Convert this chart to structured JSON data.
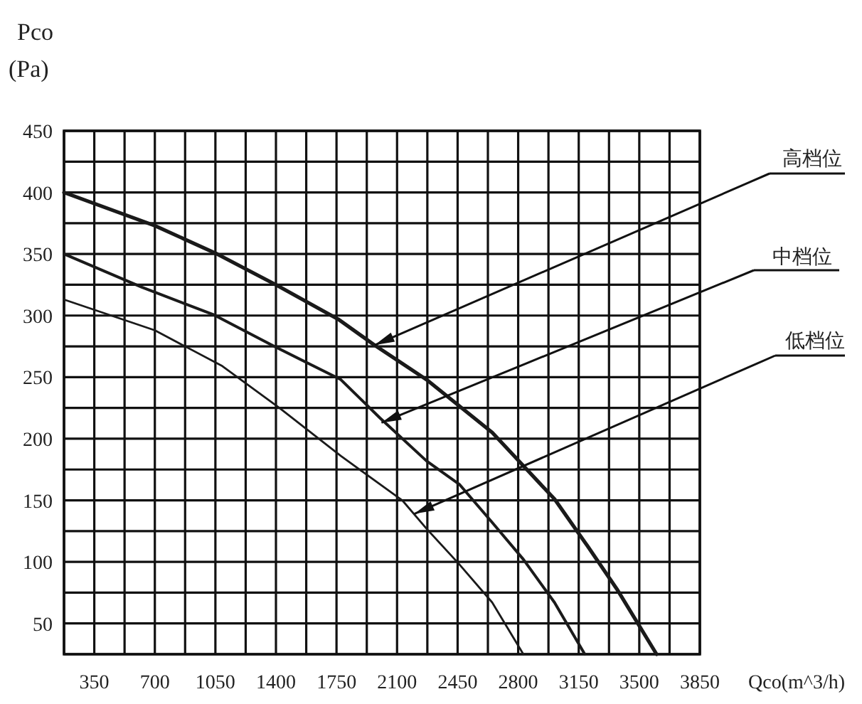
{
  "chart_data": {
    "type": "line",
    "xlabel": "Qco(m^3/h)",
    "ylabel": "Pco (Pa)",
    "xlim": [
      175,
      3850
    ],
    "ylim": [
      25,
      450
    ],
    "xticks": [
      {
        "value": 175,
        "label": null
      },
      350,
      {
        "value": 525,
        "label": null
      },
      700,
      {
        "value": 875,
        "label": null
      },
      1050,
      {
        "value": 1225,
        "label": null
      },
      1400,
      {
        "value": 1575,
        "label": null
      },
      1750,
      {
        "value": 1925,
        "label": null
      },
      2100,
      {
        "value": 2275,
        "label": null
      },
      2450,
      {
        "value": 2625,
        "label": null
      },
      2800,
      {
        "value": 2975,
        "label": null
      },
      3150,
      {
        "value": 3325,
        "label": null
      },
      3500,
      {
        "value": 3675,
        "label": null
      },
      3850
    ],
    "yticks": [
      {
        "value": 25,
        "label": null
      },
      50,
      {
        "value": 75,
        "label": null
      },
      100,
      {
        "value": 125,
        "label": null
      },
      150,
      {
        "value": 175,
        "label": null
      },
      200,
      {
        "value": 225,
        "label": null
      },
      250,
      {
        "value": 275,
        "label": null
      },
      300,
      {
        "value": 325,
        "label": null
      },
      350,
      {
        "value": 375,
        "label": null
      },
      400,
      {
        "value": 425,
        "label": null
      },
      450
    ],
    "grid": true,
    "series": [
      {
        "color": "#1a1a1a",
        "x": [
          175,
          700,
          1060,
          1400,
          1760,
          1970,
          2270,
          2650,
          2830,
          3010,
          3200,
          3370,
          3600
        ],
        "values": [
          400,
          373,
          350,
          325,
          297,
          276,
          248,
          205,
          178,
          151,
          113,
          78,
          25
        ]
      },
      {
        "color": "#1a1a1a",
        "x": [
          175,
          625,
          1035,
          1390,
          1775,
          2000,
          2270,
          2460,
          2650,
          2830,
          3010,
          3185
        ],
        "values": [
          350,
          323,
          301,
          275,
          248,
          217,
          182,
          163,
          132,
          102,
          67,
          25
        ]
      },
      {
        "color": "#1a1a1a",
        "x": [
          175,
          700,
          1090,
          1420,
          1775,
          2130,
          2270,
          2460,
          2650,
          2830
        ],
        "values": [
          313,
          288,
          259,
          225,
          186,
          150,
          127,
          98,
          67,
          25
        ]
      }
    ],
    "annotations": [
      {
        "text": "高档位",
        "x": 1970,
        "y": 276
      },
      {
        "text": "中档位",
        "x": 2010,
        "y": 213
      },
      {
        "text": "低档位",
        "x": 2200,
        "y": 139
      }
    ]
  }
}
